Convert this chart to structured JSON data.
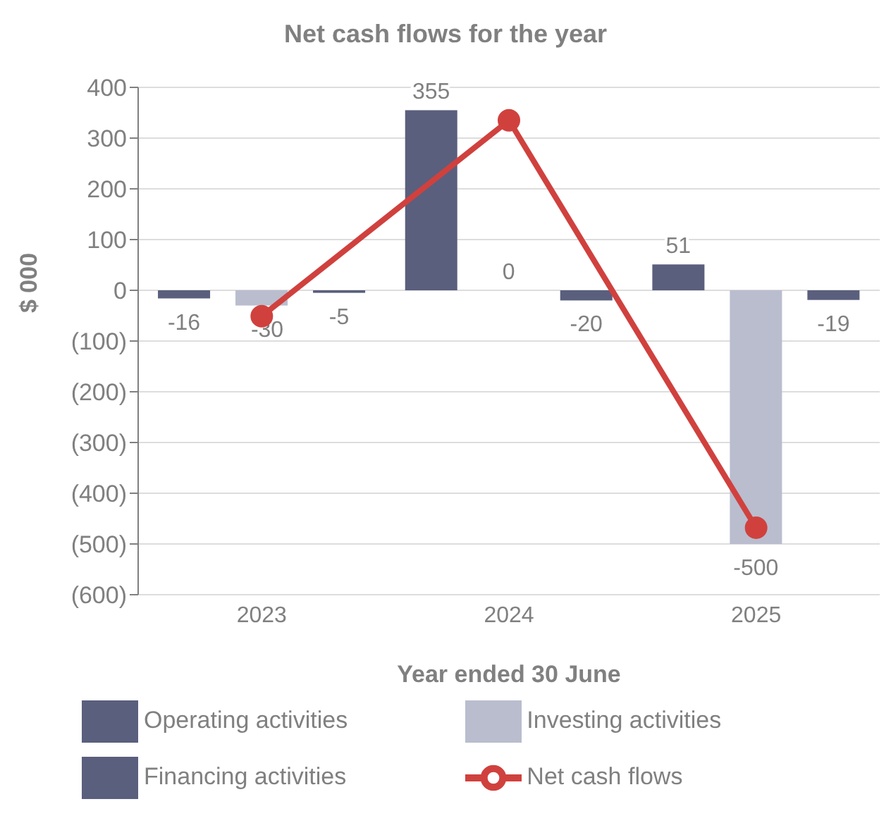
{
  "chart_data": {
    "type": "bar",
    "title": "Net cash flows for the year",
    "xlabel": "Year ended 30 June",
    "ylabel": "$ 000",
    "categories": [
      "2023",
      "2024",
      "2025"
    ],
    "series": [
      {
        "name": "Operating activities",
        "color": "#5a5f7d",
        "values": [
          -16,
          355,
          51
        ],
        "value_labels": [
          "-16",
          "355",
          "51"
        ]
      },
      {
        "name": "Investing activities",
        "color": "#b9bdce",
        "values": [
          -30,
          0,
          -500
        ],
        "value_labels": [
          "-30",
          "0",
          "-500"
        ]
      },
      {
        "name": "Financing activities",
        "color": "#5a5f7d",
        "values": [
          -5,
          -20,
          -19
        ],
        "value_labels": [
          "-5",
          "-20",
          "-19"
        ]
      },
      {
        "name": "Net cash flows",
        "type": "line",
        "color": "#d0413e",
        "values": [
          -51,
          335,
          -468
        ],
        "marker": "circle"
      }
    ],
    "ylim": [
      -600,
      400
    ],
    "yticks": [
      {
        "value": -600,
        "label": "(600)"
      },
      {
        "value": -500,
        "label": "(500)"
      },
      {
        "value": -400,
        "label": "(400)"
      },
      {
        "value": -300,
        "label": "(300)"
      },
      {
        "value": -200,
        "label": "(200)"
      },
      {
        "value": -100,
        "label": "(100)"
      },
      0,
      100,
      200,
      300,
      400
    ],
    "grid": "y",
    "legend": "bottom"
  }
}
